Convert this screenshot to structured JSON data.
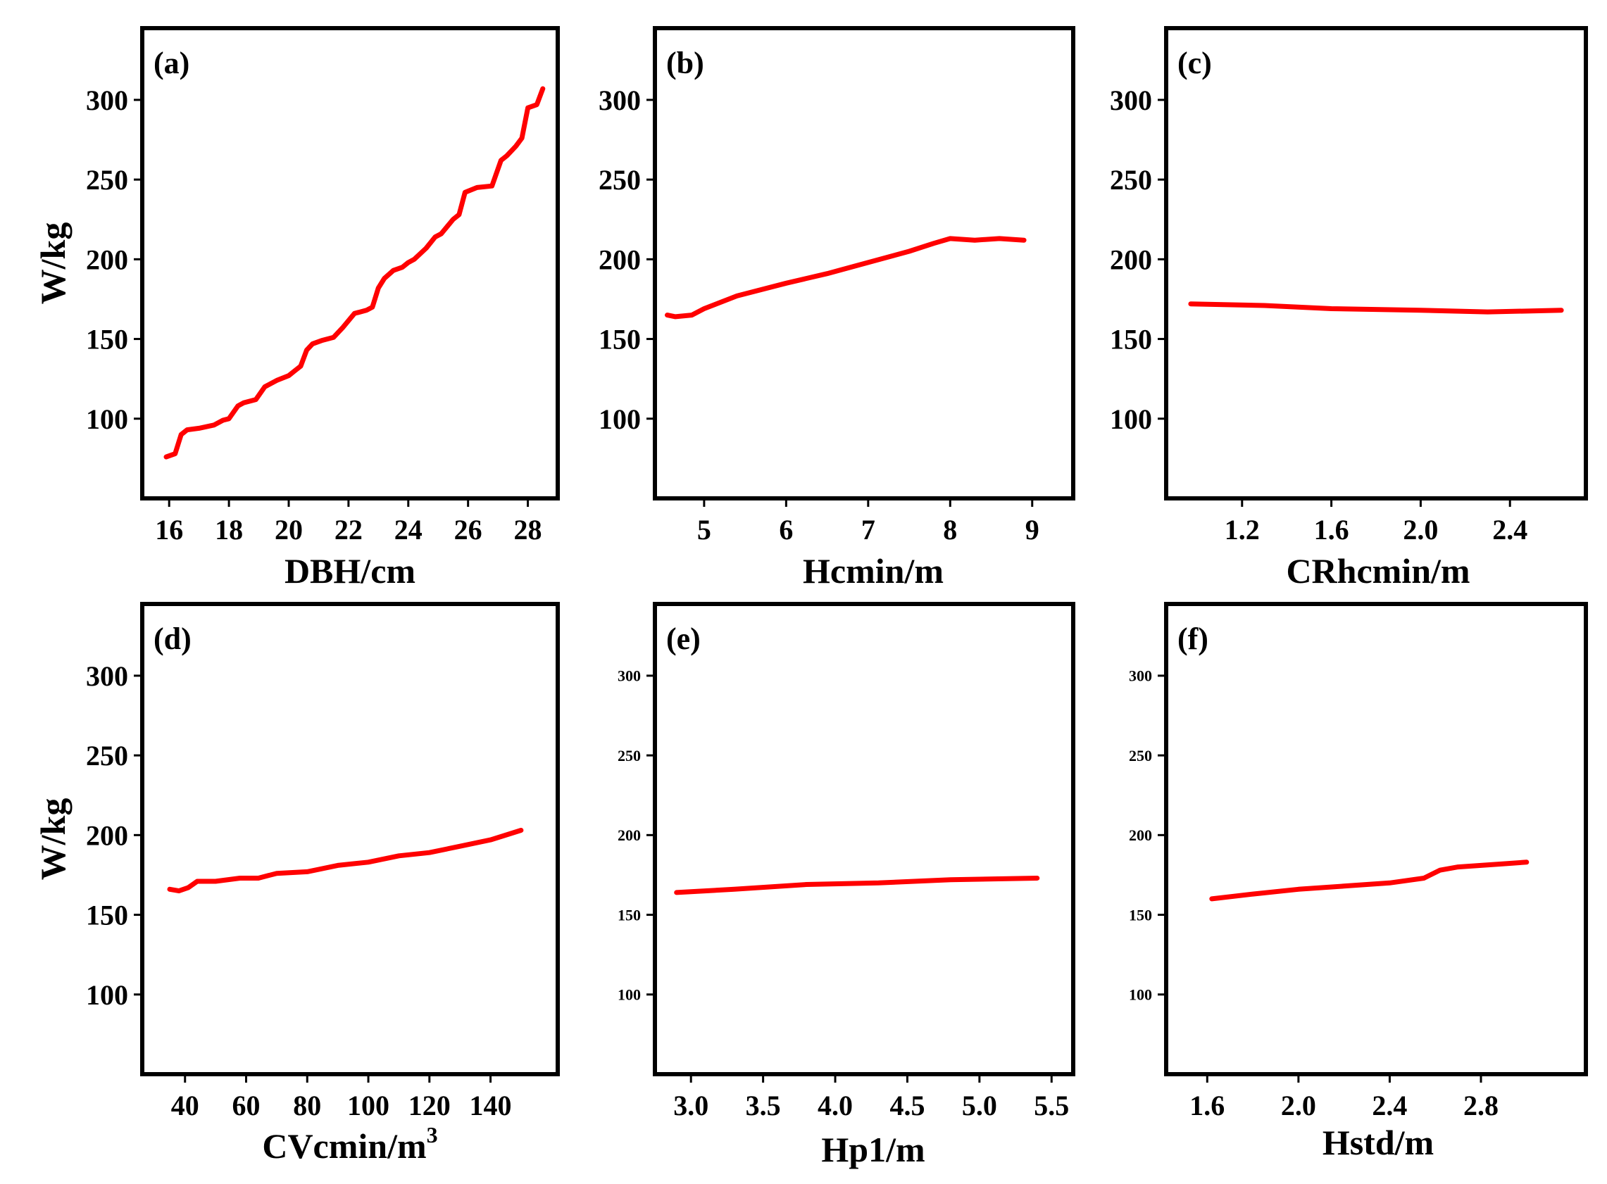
{
  "colors": {
    "line": "#ff0000",
    "axes": "#000000"
  },
  "chart_data": [
    {
      "panel": "(a)",
      "type": "line",
      "xlabel": "DBH/cm",
      "ylabel": "W/kg",
      "xlim": [
        15.1,
        29.0
      ],
      "ylim": [
        50,
        345
      ],
      "xticks": [
        16,
        18,
        20,
        22,
        24,
        26,
        28
      ],
      "xtick_labels": [
        "16",
        "18",
        "20",
        "22",
        "24",
        "26",
        "28"
      ],
      "yticks": [
        100,
        150,
        200,
        250,
        300
      ],
      "ytick_labels": [
        "100",
        "150",
        "200",
        "250",
        "300"
      ],
      "x": [
        15.9,
        16.2,
        16.4,
        16.6,
        17.0,
        17.5,
        17.8,
        18.0,
        18.3,
        18.5,
        18.9,
        19.2,
        19.6,
        20.0,
        20.2,
        20.4,
        20.6,
        20.8,
        21.1,
        21.5,
        21.7,
        21.8,
        22.2,
        22.6,
        22.8,
        23.0,
        23.2,
        23.5,
        23.8,
        24.0,
        24.2,
        24.6,
        24.9,
        25.1,
        25.5,
        25.7,
        25.9,
        26.3,
        26.8,
        27.1,
        27.3,
        27.6,
        27.8,
        28.0,
        28.3,
        28.5
      ],
      "y": [
        76,
        78,
        90,
        93,
        94,
        96,
        99,
        100,
        108,
        110,
        112,
        120,
        124,
        127,
        130,
        133,
        143,
        147,
        149,
        151,
        155,
        157,
        166,
        168,
        170,
        182,
        188,
        193,
        195,
        198,
        200,
        207,
        214,
        216,
        225,
        228,
        242,
        245,
        246,
        262,
        265,
        271,
        276,
        295,
        297,
        307
      ]
    },
    {
      "panel": "(b)",
      "type": "line",
      "xlabel": "Hcmin/m",
      "ylabel": "",
      "xlim": [
        4.4,
        9.5
      ],
      "ylim": [
        50,
        345
      ],
      "xticks": [
        5,
        6,
        7,
        8,
        9
      ],
      "xtick_labels": [
        "5",
        "6",
        "7",
        "8",
        "9"
      ],
      "yticks": [
        100,
        150,
        200,
        250,
        300
      ],
      "ytick_labels": [
        "100",
        "150",
        "200",
        "250",
        "300"
      ],
      "x": [
        4.55,
        4.65,
        4.85,
        5.0,
        5.4,
        6.0,
        6.5,
        7.0,
        7.5,
        7.8,
        8.0,
        8.3,
        8.6,
        8.9
      ],
      "y": [
        165,
        164,
        165,
        169,
        177,
        185,
        191,
        198,
        205,
        210,
        213,
        212,
        213,
        212
      ]
    },
    {
      "panel": "(c)",
      "type": "line",
      "xlabel": "CRhcmin/m",
      "ylabel": "",
      "xlim": [
        0.86,
        2.74
      ],
      "ylim": [
        50,
        345
      ],
      "xticks": [
        1.2,
        1.6,
        2.0,
        2.4
      ],
      "xtick_labels": [
        "1.2",
        "1.6",
        "2.0",
        "2.4"
      ],
      "yticks": [
        100,
        150,
        200,
        250,
        300
      ],
      "ytick_labels": [
        "100",
        "150",
        "200",
        "250",
        "300"
      ],
      "x": [
        0.97,
        1.3,
        1.6,
        2.0,
        2.3,
        2.63
      ],
      "y": [
        172,
        171,
        169,
        168,
        167,
        168
      ]
    },
    {
      "panel": "(d)",
      "type": "line",
      "xlabel": "CVcmin/m",
      "xlabel_sup": "3",
      "ylabel": "W/kg",
      "xlim": [
        26,
        162
      ],
      "ylim": [
        50,
        345
      ],
      "xticks": [
        40,
        60,
        80,
        100,
        120,
        140
      ],
      "xtick_labels": [
        "40",
        "60",
        "80",
        "100",
        "120",
        "140"
      ],
      "yticks": [
        100,
        150,
        200,
        250,
        300
      ],
      "ytick_labels": [
        "100",
        "150",
        "200",
        "250",
        "300"
      ],
      "x": [
        35,
        38,
        41,
        44,
        50,
        58,
        64,
        70,
        80,
        90,
        100,
        110,
        120,
        130,
        140,
        150
      ],
      "y": [
        166,
        165,
        167,
        171,
        171,
        173,
        173,
        176,
        177,
        181,
        183,
        187,
        189,
        193,
        197,
        203
      ]
    },
    {
      "panel": "(e)",
      "type": "line",
      "xlabel": "Hp1/m",
      "ylabel": "",
      "xlim": [
        2.75,
        5.65
      ],
      "ylim": [
        50,
        345
      ],
      "xticks": [
        3.0,
        3.5,
        4.0,
        4.5,
        5.0,
        5.5
      ],
      "xtick_labels": [
        "3.0",
        "3.5",
        "4.0",
        "4.5",
        "5.0",
        "5.5"
      ],
      "yticks": [
        100,
        150,
        200,
        250,
        300
      ],
      "ytick_labels": [
        "100",
        "150",
        "200",
        "250",
        "300"
      ],
      "x": [
        2.9,
        3.3,
        3.8,
        4.3,
        4.8,
        5.4
      ],
      "y": [
        164,
        166,
        169,
        170,
        172,
        173
      ]
    },
    {
      "panel": "(f)",
      "type": "line",
      "xlabel": "Hstd/m",
      "ylabel": "",
      "xlim": [
        1.42,
        3.26
      ],
      "ylim": [
        50,
        345
      ],
      "xticks": [
        1.6,
        2.0,
        2.4,
        2.8
      ],
      "xtick_labels": [
        "1.6",
        "2.0",
        "2.4",
        "2.8"
      ],
      "yticks": [
        100,
        150,
        200,
        250,
        300
      ],
      "ytick_labels": [
        "100",
        "150",
        "200",
        "250",
        "300"
      ],
      "x": [
        1.62,
        1.8,
        2.0,
        2.2,
        2.4,
        2.55,
        2.62,
        2.7,
        2.9,
        3.0
      ],
      "y": [
        160,
        163,
        166,
        168,
        170,
        173,
        178,
        180,
        182,
        183
      ]
    }
  ]
}
